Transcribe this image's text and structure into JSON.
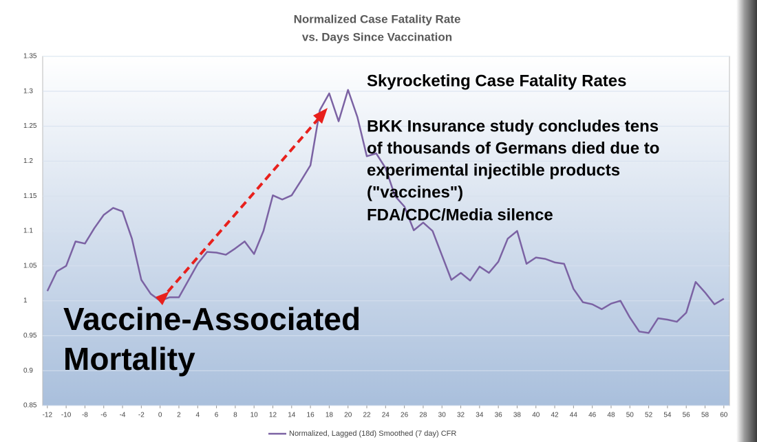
{
  "chart_data": {
    "type": "line",
    "title": "Normalized Case Fatality Rate",
    "subtitle": "vs. Days Since Vaccination",
    "annotations": [
      "Skyrocketing Case Fatality Rates",
      "BKK Insurance study concludes tens",
      "of thousands of Germans died due to",
      "experimental injectible products",
      "(\"vaccines\")",
      "FDA/CDC/Media silence"
    ],
    "big_annotations": [
      "Vaccine-Associated",
      "Mortality"
    ],
    "x": [
      -12,
      -11,
      -10,
      -9,
      -8,
      -7,
      -6,
      -5,
      -4,
      -3,
      -2,
      -1,
      0,
      1,
      2,
      3,
      4,
      5,
      6,
      7,
      8,
      9,
      10,
      11,
      12,
      13,
      14,
      15,
      16,
      17,
      18,
      19,
      20,
      21,
      22,
      23,
      24,
      25,
      26,
      27,
      28,
      29,
      30,
      31,
      32,
      33,
      34,
      35,
      36,
      37,
      38,
      39,
      40,
      41,
      42,
      43,
      44,
      45,
      46,
      47,
      48,
      49,
      50,
      51,
      52,
      53,
      54,
      55,
      56,
      57,
      58,
      59,
      60
    ],
    "series": [
      {
        "name": "Normalized, Lagged (18d) Smoothed (7 day) CFR",
        "color": "#7b62a3",
        "values": [
          1.014,
          1.042,
          1.05,
          1.085,
          1.082,
          1.104,
          1.123,
          1.133,
          1.128,
          1.089,
          1.03,
          1.01,
          1.0,
          1.005,
          1.005,
          1.029,
          1.053,
          1.07,
          1.069,
          1.066,
          1.075,
          1.085,
          1.067,
          1.1,
          1.151,
          1.145,
          1.151,
          1.172,
          1.194,
          1.273,
          1.297,
          1.257,
          1.302,
          1.263,
          1.207,
          1.211,
          1.19,
          1.15,
          1.135,
          1.101,
          1.112,
          1.1,
          1.065,
          1.03,
          1.04,
          1.029,
          1.049,
          1.04,
          1.056,
          1.089,
          1.1,
          1.053,
          1.062,
          1.06,
          1.055,
          1.053,
          1.017,
          0.998,
          0.995,
          0.988,
          0.996,
          1.0,
          0.976,
          0.956,
          0.954,
          0.975,
          0.973,
          0.97,
          0.983,
          1.027,
          1.012,
          0.995,
          1.003
        ]
      }
    ],
    "xlim": [
      -12.5,
      60.6
    ],
    "xticks": [
      -12,
      -10,
      -8,
      -6,
      -4,
      -2,
      0,
      2,
      4,
      6,
      8,
      10,
      12,
      14,
      16,
      18,
      20,
      22,
      24,
      26,
      28,
      30,
      32,
      34,
      36,
      38,
      40,
      42,
      44,
      46,
      48,
      50,
      52,
      54,
      56,
      58,
      60
    ],
    "ylim": [
      0.85,
      1.35
    ],
    "yticks": [
      0.85,
      0.9,
      0.95,
      1,
      1.05,
      1.1,
      1.15,
      1.2,
      1.25,
      1.3,
      1.35
    ],
    "grid": true,
    "legend": "bottom"
  }
}
